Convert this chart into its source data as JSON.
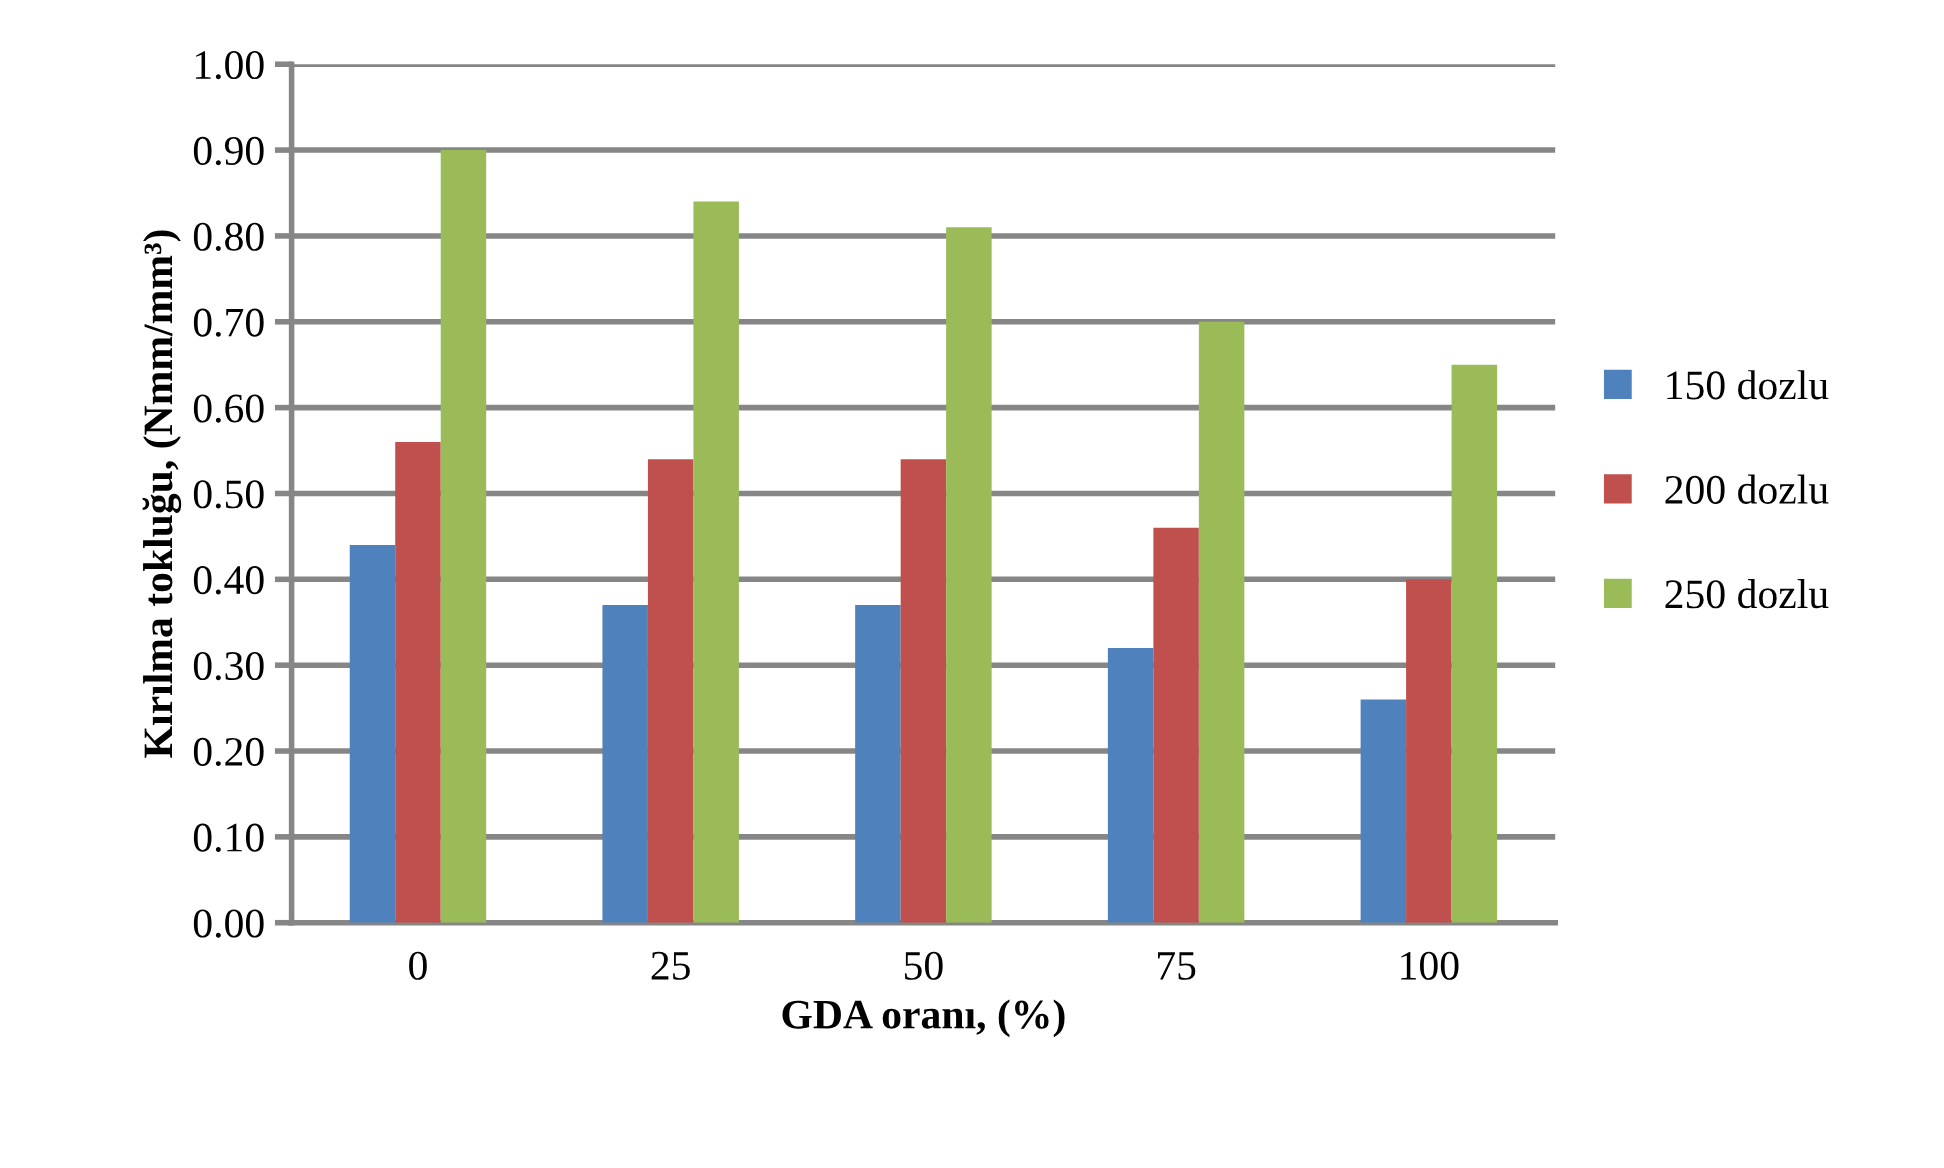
{
  "chart_data": {
    "type": "bar",
    "xlabel": "GDA oranı, (%)",
    "ylabel": "Kırılma tokluğu, (Nmm/mm³)",
    "categories": [
      "0",
      "25",
      "50",
      "75",
      "100"
    ],
    "series": [
      {
        "name": "150 dozlu",
        "color": "#4f81bd",
        "values": [
          0.44,
          0.37,
          0.37,
          0.32,
          0.26
        ]
      },
      {
        "name": "200 dozlu",
        "color": "#c0504d",
        "values": [
          0.56,
          0.54,
          0.54,
          0.46,
          0.4
        ]
      },
      {
        "name": "250 dozlu",
        "color": "#9bbb59",
        "values": [
          0.9,
          0.84,
          0.81,
          0.7,
          0.65
        ]
      }
    ],
    "ylim": [
      0,
      1
    ],
    "yticks": [
      {
        "value": 0,
        "label": "0.00"
      },
      {
        "value": 0.1,
        "label": "0.10"
      },
      {
        "value": 0.2,
        "label": "0.20"
      },
      {
        "value": 0.3,
        "label": "0.30"
      },
      {
        "value": 0.4,
        "label": "0.40"
      },
      {
        "value": 0.5,
        "label": "0.50"
      },
      {
        "value": 0.6,
        "label": "0.60"
      },
      {
        "value": 0.7,
        "label": "0.70"
      },
      {
        "value": 0.8,
        "label": "0.80"
      },
      {
        "value": 0.9,
        "label": "0.90"
      },
      {
        "value": 1,
        "label": "1.00"
      }
    ],
    "grid": "y",
    "legend": "right"
  }
}
